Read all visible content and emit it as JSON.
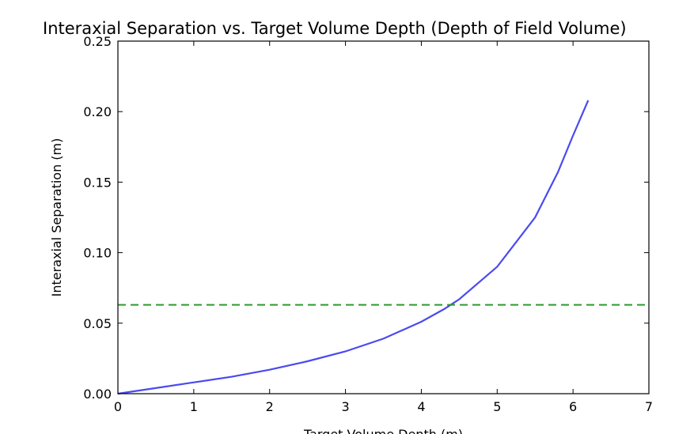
{
  "chart_data": {
    "type": "line",
    "title": "Interaxial Separation vs. Target Volume Depth (Depth of Field Volume)",
    "xlabel": "Target Volume Depth (m)",
    "ylabel": "Interaxial Separation (m)",
    "xlim": [
      0,
      7
    ],
    "ylim": [
      0,
      0.25
    ],
    "grid": false,
    "x_ticks": [
      "0",
      "1",
      "2",
      "3",
      "4",
      "5",
      "6",
      "7"
    ],
    "y_ticks": [
      "0.00",
      "0.05",
      "0.10",
      "0.15",
      "0.20",
      "0.25"
    ],
    "series": [
      {
        "style": "solid",
        "color": "#4a4af0",
        "x": [
          0,
          0.5,
          1.0,
          1.5,
          2.0,
          2.5,
          3.0,
          3.5,
          4.0,
          4.3,
          4.5,
          5.0,
          5.5,
          5.8,
          6.0,
          6.2
        ],
        "y": [
          0,
          0.004,
          0.008,
          0.012,
          0.017,
          0.023,
          0.03,
          0.039,
          0.051,
          0.06,
          0.067,
          0.09,
          0.125,
          0.157,
          0.183,
          0.208
        ]
      },
      {
        "style": "dashed",
        "color": "#2e9a2e",
        "x": [
          0,
          7
        ],
        "y": [
          0.063,
          0.063
        ]
      }
    ]
  }
}
